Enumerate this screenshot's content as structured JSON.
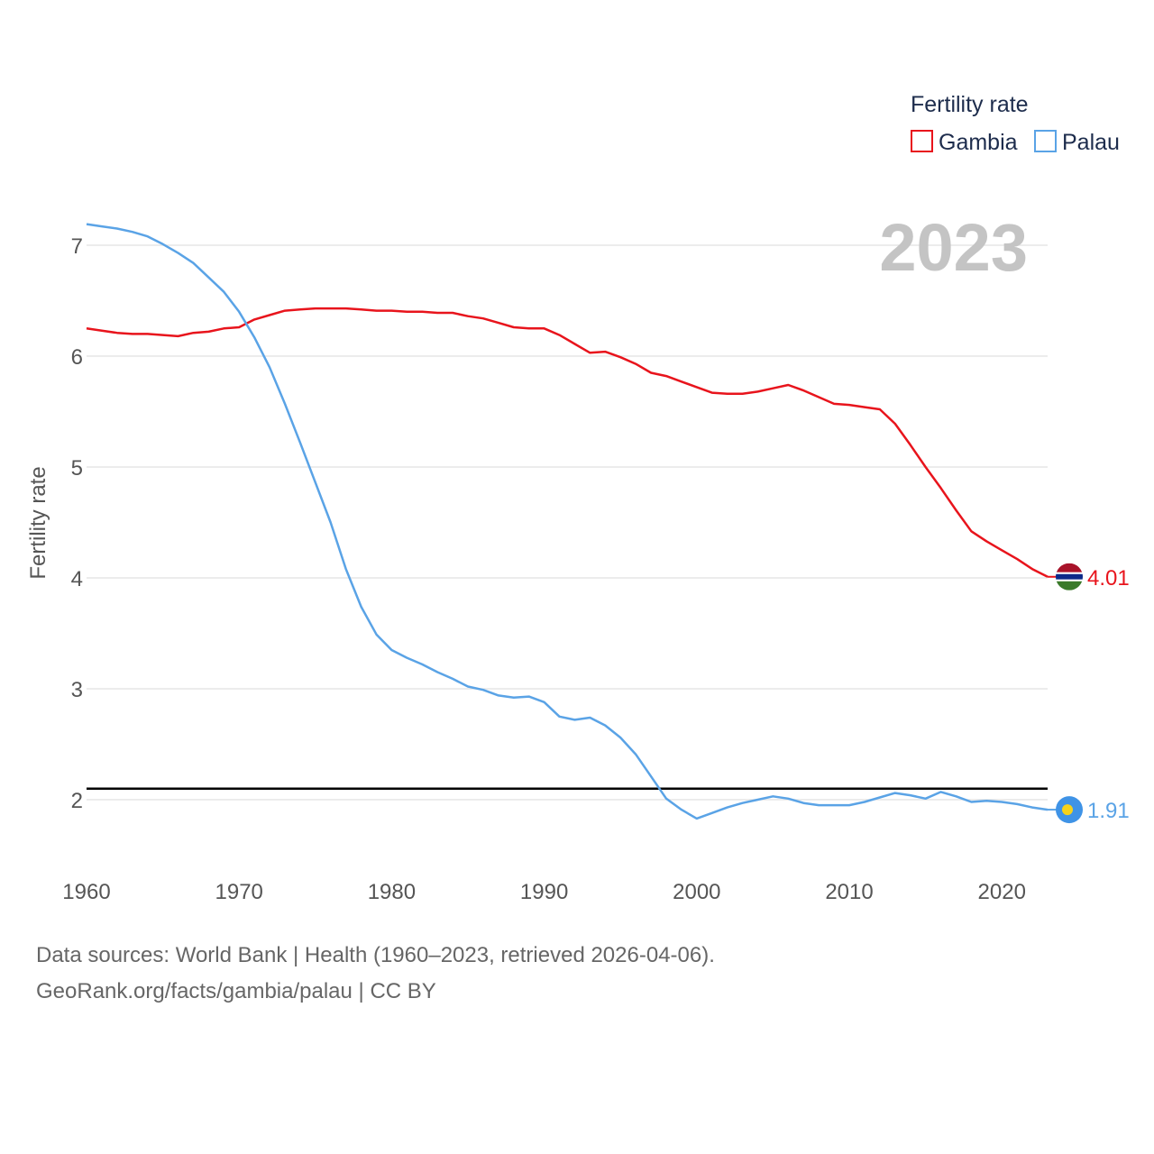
{
  "chart_data": {
    "type": "line",
    "legend_title": "Fertility rate",
    "ylabel": "Fertility rate",
    "xlabel": "",
    "year_label": "2023",
    "xlim": [
      1960,
      2023
    ],
    "ylim": [
      1.5,
      7.4
    ],
    "x_ticks": [
      1960,
      1970,
      1980,
      1990,
      2000,
      2010,
      2020
    ],
    "y_ticks": [
      2,
      3,
      4,
      5,
      6,
      7
    ],
    "reference_line": {
      "value": 2.1,
      "color": "#000000"
    },
    "legend_placement": "top-right",
    "x": [
      1960,
      1961,
      1962,
      1963,
      1964,
      1965,
      1966,
      1967,
      1968,
      1969,
      1970,
      1971,
      1972,
      1973,
      1974,
      1975,
      1976,
      1977,
      1978,
      1979,
      1980,
      1981,
      1982,
      1983,
      1984,
      1985,
      1986,
      1987,
      1988,
      1989,
      1990,
      1991,
      1992,
      1993,
      1994,
      1995,
      1996,
      1997,
      1998,
      1999,
      2000,
      2001,
      2002,
      2003,
      2004,
      2005,
      2006,
      2007,
      2008,
      2009,
      2010,
      2011,
      2012,
      2013,
      2014,
      2015,
      2016,
      2017,
      2018,
      2019,
      2020,
      2021,
      2022,
      2023
    ],
    "series": [
      {
        "name": "Gambia",
        "color": "#e8141c",
        "end_value_label": "4.01",
        "values": [
          6.25,
          6.23,
          6.21,
          6.2,
          6.2,
          6.19,
          6.18,
          6.21,
          6.22,
          6.25,
          6.26,
          6.33,
          6.37,
          6.41,
          6.42,
          6.43,
          6.43,
          6.43,
          6.42,
          6.41,
          6.41,
          6.4,
          6.4,
          6.39,
          6.39,
          6.36,
          6.34,
          6.3,
          6.26,
          6.25,
          6.25,
          6.19,
          6.11,
          6.03,
          6.04,
          5.99,
          5.93,
          5.85,
          5.82,
          5.77,
          5.72,
          5.67,
          5.66,
          5.66,
          5.68,
          5.71,
          5.74,
          5.69,
          5.63,
          5.57,
          5.56,
          5.54,
          5.52,
          5.39,
          5.2,
          5.0,
          4.81,
          4.61,
          4.42,
          4.33,
          4.25,
          4.17,
          4.08,
          4.01
        ]
      },
      {
        "name": "Palau",
        "color": "#5aa3e6",
        "end_value_label": "1.91",
        "values": [
          7.19,
          7.17,
          7.15,
          7.12,
          7.08,
          7.01,
          6.93,
          6.84,
          6.71,
          6.58,
          6.4,
          6.17,
          5.9,
          5.57,
          5.22,
          4.86,
          4.5,
          4.08,
          3.74,
          3.49,
          3.35,
          3.28,
          3.22,
          3.15,
          3.09,
          3.02,
          2.99,
          2.94,
          2.92,
          2.93,
          2.88,
          2.75,
          2.72,
          2.74,
          2.67,
          2.56,
          2.41,
          2.21,
          2.01,
          1.91,
          1.83,
          1.88,
          1.93,
          1.97,
          2.0,
          2.03,
          2.01,
          1.97,
          1.95,
          1.95,
          1.95,
          1.98,
          2.02,
          2.06,
          2.04,
          2.01,
          2.07,
          2.03,
          1.98,
          1.99,
          1.98,
          1.96,
          1.93,
          1.91
        ]
      }
    ]
  },
  "footer": {
    "line1": "Data sources: World Bank | Health (1960–2023, retrieved 2026-04-06).",
    "line2": "GeoRank.org/facts/gambia/palau | CC BY"
  }
}
